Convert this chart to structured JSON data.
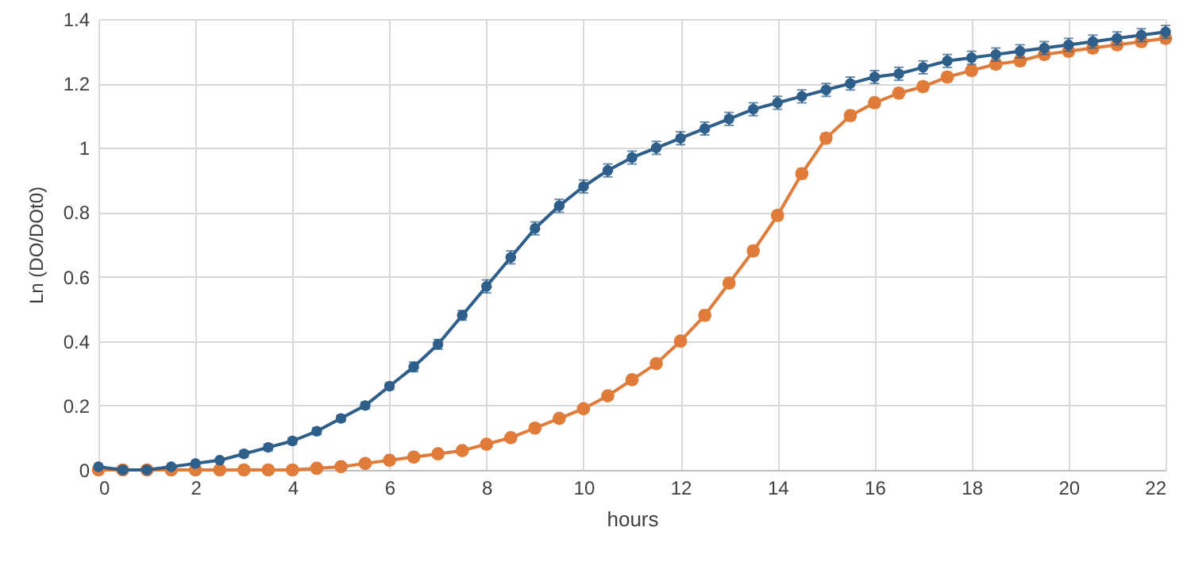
{
  "chart_data": {
    "type": "line",
    "xlabel": "hours",
    "ylabel": "Ln (DO/DOt0)",
    "x": [
      0,
      0.5,
      1,
      1.5,
      2,
      2.5,
      3,
      3.5,
      4,
      4.5,
      5,
      5.5,
      6,
      6.5,
      7,
      7.5,
      8,
      8.5,
      9,
      9.5,
      10,
      10.5,
      11,
      11.5,
      12,
      12.5,
      13,
      13.5,
      14,
      14.5,
      15,
      15.5,
      16,
      16.5,
      17,
      17.5,
      18,
      18.5,
      19,
      19.5,
      20,
      20.5,
      21,
      21.5,
      22
    ],
    "series": [
      {
        "color": "#2e5f8a",
        "values": [
          0.01,
          0,
          0,
          0.01,
          0.02,
          0.03,
          0.05,
          0.07,
          0.09,
          0.12,
          0.16,
          0.2,
          0.26,
          0.32,
          0.39,
          0.48,
          0.57,
          0.66,
          0.75,
          0.82,
          0.88,
          0.93,
          0.97,
          1.0,
          1.03,
          1.06,
          1.09,
          1.12,
          1.14,
          1.16,
          1.18,
          1.2,
          1.22,
          1.23,
          1.25,
          1.27,
          1.28,
          1.29,
          1.3,
          1.31,
          1.32,
          1.33,
          1.34,
          1.35,
          1.36
        ],
        "errors": [
          null,
          null,
          null,
          null,
          null,
          null,
          0.01,
          0.01,
          0.01,
          0.01,
          0.01,
          0.01,
          0.01,
          0.015,
          0.015,
          0.015,
          0.02,
          0.02,
          0.02,
          0.02,
          0.02,
          0.02,
          0.02,
          0.02,
          0.02,
          0.02,
          0.02,
          0.02,
          0.02,
          0.02,
          0.02,
          0.02,
          0.02,
          0.02,
          0.02,
          0.02,
          0.02,
          0.02,
          0.02,
          0.02,
          0.02,
          0.02,
          0.02,
          0.02,
          0.02
        ]
      },
      {
        "color": "#e07b39",
        "values": [
          0,
          0,
          0,
          0,
          0,
          0,
          0,
          0,
          0,
          0.005,
          0.01,
          0.02,
          0.03,
          0.04,
          0.05,
          0.06,
          0.08,
          0.1,
          0.13,
          0.16,
          0.19,
          0.23,
          0.28,
          0.33,
          0.4,
          0.48,
          0.58,
          0.68,
          0.79,
          0.92,
          1.03,
          1.1,
          1.14,
          1.17,
          1.19,
          1.22,
          1.24,
          1.26,
          1.27,
          1.29,
          1.3,
          1.31,
          1.32,
          1.33,
          1.34
        ],
        "errors": [
          null,
          null,
          null,
          null,
          null,
          null,
          0.005,
          0.005,
          0.005,
          0.005,
          0.005,
          0.005,
          0.005,
          0.005,
          0.005,
          0.005,
          0.01,
          0.01,
          0.01,
          0.01,
          0.01,
          0.01,
          0.01,
          0.01,
          0.01,
          0.015,
          0.015,
          0.015,
          0.015,
          0.015,
          0.015,
          0.015,
          0.015,
          0.015,
          0.015,
          0.015,
          0.015,
          0.015,
          0.015,
          0.015,
          0.015,
          0.015,
          0.015,
          0.015,
          0.015
        ]
      }
    ],
    "xlim": [
      0,
      22
    ],
    "xticks": [
      0,
      2,
      4,
      6,
      8,
      10,
      12,
      14,
      16,
      18,
      20,
      22
    ],
    "ylim": [
      0,
      1.4
    ],
    "yticks": [
      0,
      0.2,
      0.4,
      0.6,
      0.8,
      1,
      1.2,
      1.4
    ],
    "grid": true,
    "marker": "circle",
    "line_style": "solid"
  }
}
